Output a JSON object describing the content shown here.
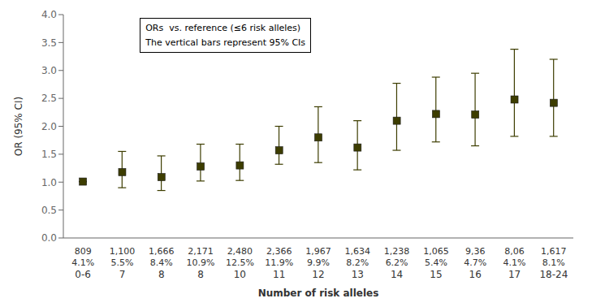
{
  "chart_data": {
    "type": "scatter",
    "xlabel": "Number of risk alleles",
    "ylabel": "OR (95% CI)",
    "categories": [
      "0-6",
      "7",
      "8",
      "8",
      "10",
      "11",
      "12",
      "13",
      "14",
      "15",
      "16",
      "17",
      "18-24"
    ],
    "values": [
      1.01,
      1.18,
      1.09,
      1.28,
      1.3,
      1.57,
      1.8,
      1.62,
      2.1,
      2.22,
      2.21,
      2.48,
      2.42
    ],
    "ci_lower": [
      1.01,
      0.9,
      0.85,
      1.02,
      1.03,
      1.32,
      1.35,
      1.22,
      1.57,
      1.72,
      1.65,
      1.82,
      1.82
    ],
    "ci_upper": [
      1.01,
      1.55,
      1.47,
      1.68,
      1.68,
      2.0,
      2.35,
      2.1,
      2.77,
      2.88,
      2.95,
      3.38,
      3.2
    ],
    "n_labels": [
      "809",
      "1,100",
      "1,666",
      "2,171",
      "2,480",
      "2,366",
      "1,967",
      "1,634",
      "1,238",
      "1,065",
      "9,36",
      "8,06",
      "1,617"
    ],
    "pct_labels": [
      "4.1%",
      "5.5%",
      "8.4%",
      "10.9%",
      "12.5%",
      "11.9%",
      "9.9%",
      "8.2%",
      "6.2%",
      "5.4%",
      "4.7%",
      "4.1%",
      "8.1%"
    ],
    "annotations": [
      "ORs  vs. reference (≤6 risk alleles)",
      "The vertical bars represent 95% CIs"
    ],
    "ylim": [
      0,
      4
    ],
    "yticks": [
      {
        "value": 0,
        "label": "0.0"
      },
      {
        "value": 0.5,
        "label": "0.5"
      },
      {
        "value": 1,
        "label": "1.0"
      },
      {
        "value": 1.5,
        "label": "1.5"
      },
      {
        "value": 2,
        "label": "2.0"
      },
      {
        "value": 2.5,
        "label": "2.5"
      },
      {
        "value": 3,
        "label": "3.0"
      },
      {
        "value": 3.5,
        "label": "3.5"
      },
      {
        "value": 4,
        "label": "4.0"
      }
    ],
    "color": "#3d3d00",
    "grid": false
  }
}
